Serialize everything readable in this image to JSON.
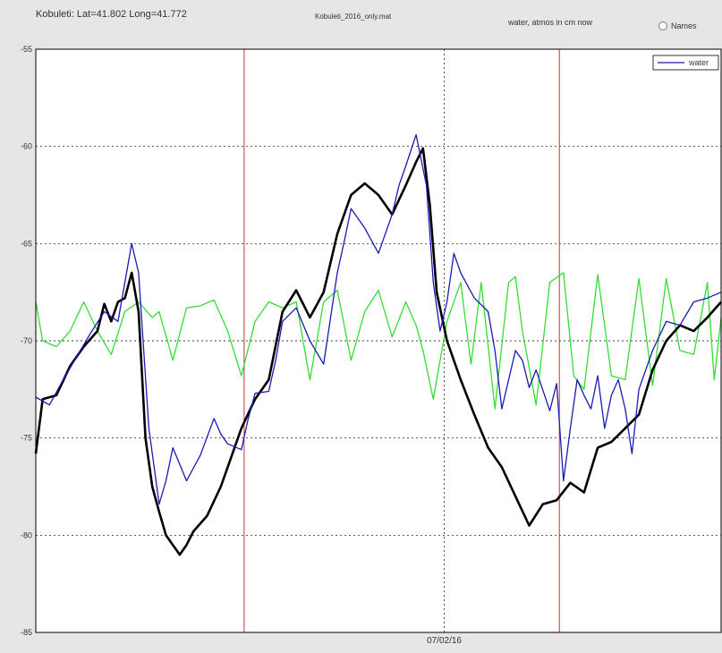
{
  "header": {
    "station": "Kobuleti:  Lat=41.802  Long=41.772",
    "file": "Kobuleti_2016_only.mat",
    "mode": "water, atmos in cm now",
    "names_label": "Names"
  },
  "colors": {
    "water": "#1a1ab4",
    "black_series": "#000000",
    "green_series": "#33dd33",
    "red_marker": "#cc3333",
    "grid": "#000000",
    "plot_bg": "#ffffff",
    "window_bg": "#e6e6e6"
  },
  "chart_data": {
    "type": "line",
    "title": "",
    "xlabel": "",
    "ylabel": "",
    "xlim": [
      0,
      100
    ],
    "ylim": [
      -85,
      -55
    ],
    "yticks": [
      -85,
      -80,
      -75,
      -70,
      -65,
      -60,
      -55
    ],
    "ytick_labels": [
      "-85",
      "-80",
      "-75",
      "-70",
      "-65",
      "-60",
      "-55"
    ],
    "xticks": [
      {
        "x": 59.6,
        "label": "07/02/16"
      }
    ],
    "grid": true,
    "legend": {
      "position": "top-right",
      "entries": [
        "water"
      ]
    },
    "red_vertical_markers": [
      30.4,
      76.4
    ],
    "series": [
      {
        "name": "water",
        "color": "#1a1ab4",
        "x": [
          0,
          2,
          4,
          6,
          8,
          10,
          12,
          14,
          15,
          16.5,
          18,
          19,
          20,
          22,
          24,
          26,
          27,
          28,
          30,
          31,
          32,
          34,
          35,
          36,
          38,
          40,
          42,
          44,
          45,
          46,
          48,
          50,
          52,
          53,
          54,
          55.5,
          57,
          58,
          59,
          60,
          61,
          62,
          64,
          66,
          67,
          68,
          69,
          70,
          71,
          72,
          73,
          75,
          76,
          77,
          78,
          79,
          80,
          81,
          82,
          83,
          84,
          85,
          86,
          87,
          88,
          90,
          92,
          94,
          96,
          98,
          100
        ],
        "y": [
          -72.9,
          -73.3,
          -72.0,
          -70.8,
          -69.6,
          -68.5,
          -69.0,
          -65.0,
          -66.5,
          -74.5,
          -78.4,
          -77.2,
          -75.5,
          -77.2,
          -75.9,
          -74.0,
          -74.8,
          -75.3,
          -75.6,
          -74.0,
          -72.7,
          -72.6,
          -71.0,
          -69.0,
          -68.3,
          -70.0,
          -71.2,
          -66.5,
          -64.9,
          -63.2,
          -64.2,
          -65.5,
          -63.5,
          -62.0,
          -61.0,
          -59.4,
          -62.0,
          -67.0,
          -69.5,
          -68.0,
          -65.5,
          -66.5,
          -67.8,
          -68.5,
          -70.5,
          -73.5,
          -72.0,
          -70.5,
          -71.0,
          -72.4,
          -71.5,
          -73.6,
          -72.2,
          -77.2,
          -74.5,
          -72.0,
          -72.8,
          -73.5,
          -71.8,
          -74.5,
          -72.8,
          -72.0,
          -73.5,
          -75.8,
          -72.5,
          -70.5,
          -69.0,
          -69.2,
          -68.0,
          -67.8,
          -67.5
        ]
      },
      {
        "name": "",
        "color": "#000000",
        "x": [
          0,
          1,
          3,
          5,
          7,
          9,
          10,
          11,
          12,
          13,
          14,
          15,
          16,
          17,
          18,
          19,
          20,
          21,
          22,
          23,
          25,
          27,
          28,
          30,
          32,
          34,
          36,
          38,
          40,
          42,
          44,
          46,
          48,
          50,
          52,
          54,
          55.5,
          56.5,
          57.5,
          58.5,
          60,
          62,
          64,
          66,
          68,
          70,
          72,
          74,
          76,
          78,
          80,
          82,
          84,
          86,
          88,
          90,
          92,
          94,
          96,
          98,
          100
        ],
        "y": [
          -75.8,
          -73.0,
          -72.8,
          -71.3,
          -70.3,
          -69.5,
          -68.1,
          -69.0,
          -68.0,
          -67.8,
          -66.5,
          -68.5,
          -75.0,
          -77.5,
          -78.8,
          -80.0,
          -80.5,
          -81.0,
          -80.5,
          -79.8,
          -79.0,
          -77.5,
          -76.5,
          -74.5,
          -73.0,
          -72.0,
          -68.5,
          -67.4,
          -68.8,
          -67.5,
          -64.5,
          -62.5,
          -61.9,
          -62.5,
          -63.5,
          -62.0,
          -60.8,
          -60.1,
          -63.0,
          -67.5,
          -70.0,
          -72.0,
          -73.8,
          -75.5,
          -76.5,
          -78.0,
          -79.5,
          -78.4,
          -78.2,
          -77.3,
          -77.8,
          -75.5,
          -75.2,
          -74.5,
          -73.8,
          -71.5,
          -70.0,
          -69.2,
          -69.5,
          -68.8,
          -68.0
        ]
      },
      {
        "name": "",
        "color": "#33dd33",
        "x": [
          0,
          1,
          3,
          5,
          7,
          9,
          11,
          13,
          15,
          17,
          18,
          20,
          22,
          24,
          26,
          28,
          30,
          32,
          34,
          36,
          38,
          40,
          42,
          44,
          46,
          48,
          50,
          52,
          54,
          55.5,
          56.5,
          58,
          60,
          62,
          63.5,
          65,
          67,
          69,
          70,
          71,
          73,
          75,
          77,
          78.5,
          80,
          82,
          84,
          86,
          88,
          90,
          92,
          94,
          96,
          98,
          99,
          100
        ],
        "y": [
          -68.0,
          -70.0,
          -70.3,
          -69.5,
          -68.0,
          -69.5,
          -70.7,
          -68.5,
          -68.0,
          -68.8,
          -68.5,
          -71.0,
          -68.3,
          -68.2,
          -67.9,
          -69.5,
          -71.8,
          -69.0,
          -68.0,
          -68.3,
          -68.0,
          -72.0,
          -68.0,
          -67.4,
          -71.0,
          -68.5,
          -67.4,
          -69.8,
          -68.0,
          -69.2,
          -70.5,
          -73.0,
          -69.0,
          -67.0,
          -71.2,
          -67.0,
          -73.5,
          -67.0,
          -66.7,
          -69.5,
          -73.3,
          -67.0,
          -66.5,
          -71.8,
          -72.5,
          -66.6,
          -71.8,
          -72.0,
          -66.8,
          -72.3,
          -66.8,
          -70.5,
          -70.7,
          -67.0,
          -72.0,
          -68.8
        ]
      }
    ]
  }
}
